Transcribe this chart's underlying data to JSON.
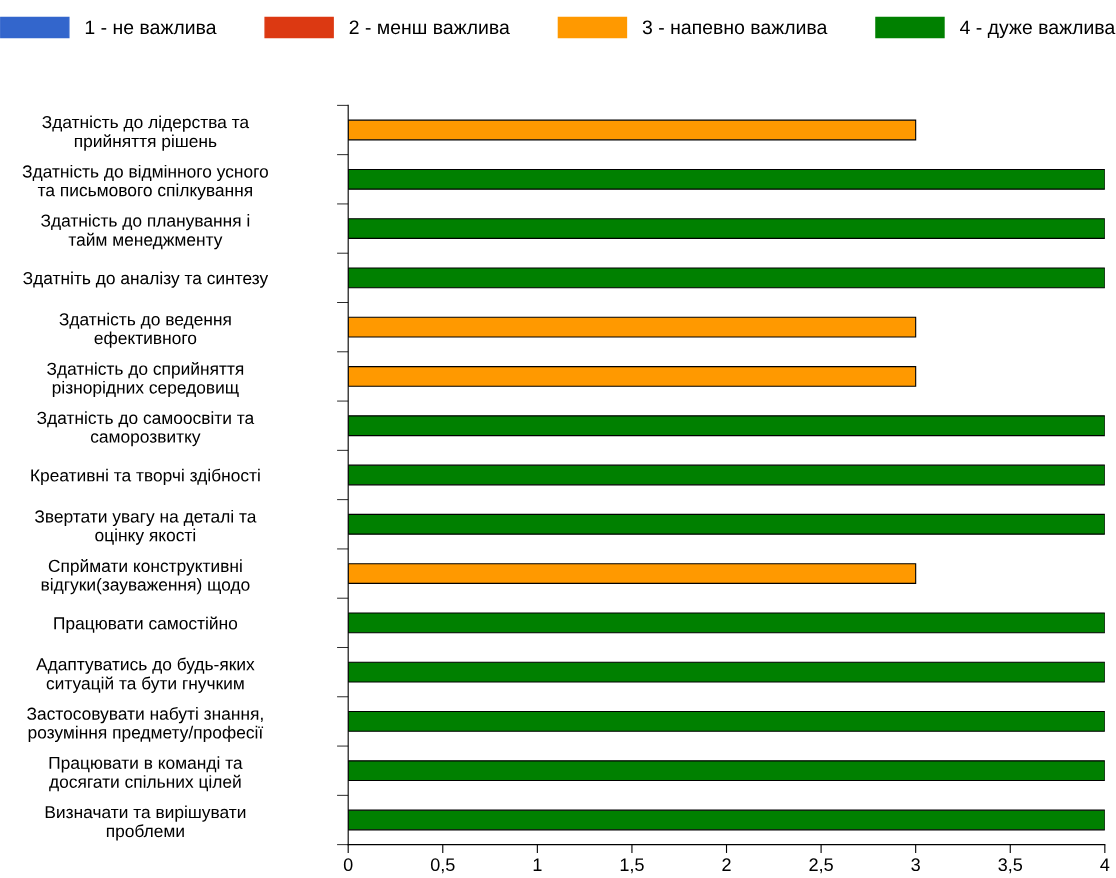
{
  "chart_data": {
    "type": "bar",
    "orientation": "horizontal",
    "stacked": true,
    "legend": "top",
    "categories": [
      "Здатність до лідерства та\nприйняття рішень",
      "Здатність до відмінного усного\nта письмового спілкування",
      "Здатність до планування і\nтайм менеджменту",
      "Здатніть до аналізу та синтезу",
      "Здатність до ведення\nефективного",
      "Здатність до сприйняття\nрізнорідних середовищ",
      "Здатність до самоосвіти та\nсаморозвитку",
      "Креативні та творчі здібності",
      "Звертати увагу на деталі та\nоцінку якості",
      "Спрймати конструктивні\nвідгуки(зауваження) щодо",
      "Працювати самостійно",
      "Адаптуватись до будь-яких\nситуацій та бути гнучким",
      "Застосовувати набуті знання,\nрозуміння предмету/професії",
      "Працювати в команді та\nдосягати спільних цілей",
      "Визначати та вирішувати\nпроблеми"
    ],
    "series": [
      {
        "name": "1 - не важлива",
        "color": "#3366cc",
        "values": [
          null,
          null,
          null,
          null,
          null,
          null,
          null,
          null,
          null,
          null,
          null,
          null,
          null,
          null,
          null
        ]
      },
      {
        "name": "2 - менш важлива",
        "color": "#dc3912",
        "values": [
          null,
          null,
          null,
          null,
          null,
          null,
          null,
          null,
          null,
          null,
          null,
          null,
          null,
          null,
          null
        ]
      },
      {
        "name": "3 - напевно важлива",
        "color": "#ff9900",
        "values": [
          3,
          null,
          null,
          null,
          3,
          3,
          null,
          null,
          null,
          3,
          null,
          null,
          null,
          null,
          null
        ]
      },
      {
        "name": "4 - дуже важлива",
        "color": "#008000",
        "values": [
          null,
          4,
          4,
          4,
          null,
          null,
          4,
          4,
          4,
          null,
          4,
          4,
          4,
          4,
          4
        ]
      }
    ],
    "xlim": [
      0,
      4
    ],
    "xticks": [
      0,
      {
        "value": 0.5,
        "label": "0,5"
      },
      1,
      {
        "value": 1.5,
        "label": "1,5"
      },
      2,
      {
        "value": 2.5,
        "label": "2,5"
      },
      3,
      {
        "value": 3.5,
        "label": "3,5"
      },
      4
    ],
    "grid": false
  }
}
